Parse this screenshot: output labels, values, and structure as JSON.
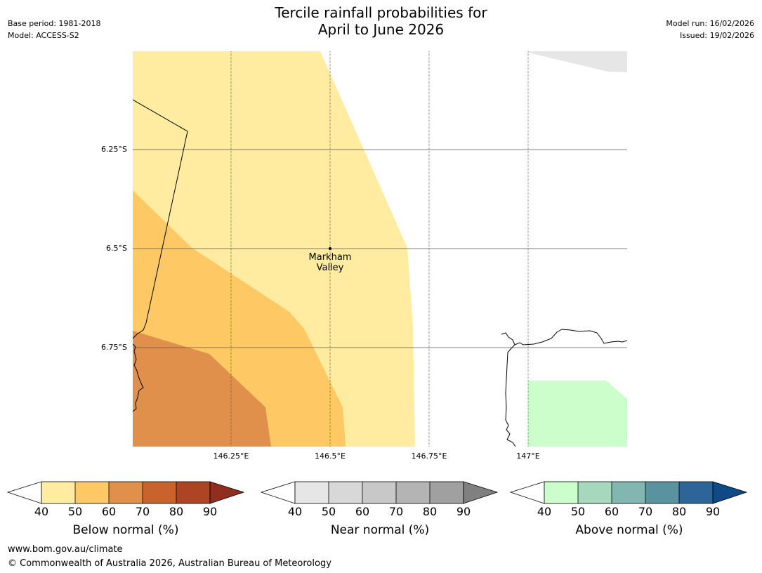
{
  "header": {
    "title_line1": "Tercile rainfall probabilities for",
    "title_line2": "April to June 2026",
    "base_period": "Base period: 1981-2018",
    "model": "Model: ACCESS-S2",
    "model_run": "Model run: 16/02/2026",
    "issued": "Issued: 19/02/2026"
  },
  "map": {
    "lat_labels": [
      "6.25°S",
      "6.5°S",
      "6.75°S"
    ],
    "lon_labels": [
      "146.25°E",
      "146.5°E",
      "146.75°E",
      "147°E"
    ],
    "place": {
      "name_line1": "Markham",
      "name_line2": "Valley",
      "lat": -6.5,
      "lon": 146.5
    },
    "extent": {
      "lon_min": 146.0,
      "lon_max": 147.25,
      "lat_min": -7.0,
      "lat_max": -6.0
    }
  },
  "colorbars": [
    {
      "label": "Below normal (%)",
      "ticks": [
        "40",
        "50",
        "60",
        "70",
        "80",
        "90"
      ],
      "colors": [
        "#ffeca0",
        "#fec965",
        "#e0904a",
        "#c9632e",
        "#ad4424",
        "#8f2d1f"
      ]
    },
    {
      "label": "Near normal (%)",
      "ticks": [
        "40",
        "50",
        "60",
        "70",
        "80",
        "90"
      ],
      "colors": [
        "#e6e6e6",
        "#d8d8d8",
        "#c8c8c8",
        "#b4b4b4",
        "#a0a0a0",
        "#808080"
      ]
    },
    {
      "label": "Above normal (%)",
      "ticks": [
        "40",
        "50",
        "60",
        "70",
        "80",
        "90"
      ],
      "colors": [
        "#ccfecc",
        "#a6d8bd",
        "#82b6b0",
        "#5a92a0",
        "#2e6599",
        "#0e4a86"
      ]
    }
  ],
  "footer": {
    "url": "www.bom.gov.au/climate",
    "copyright": "© Commonwealth of Australia 2026, Australian Bureau of Meteorology"
  }
}
